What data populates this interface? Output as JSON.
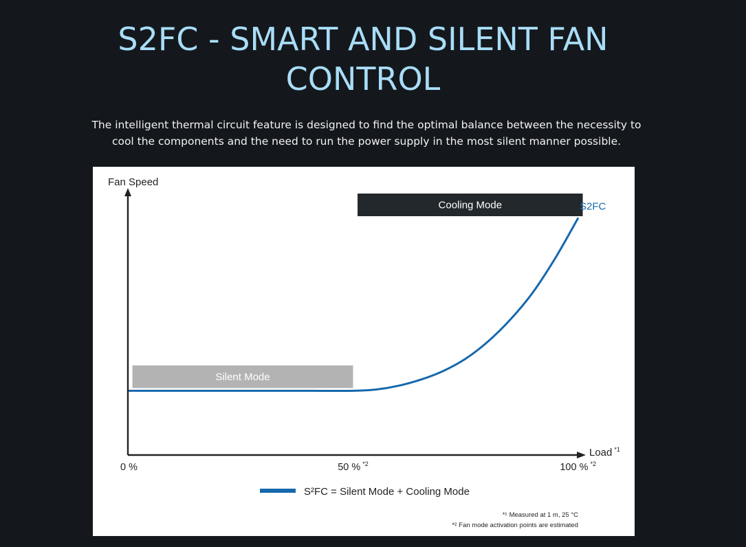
{
  "page": {
    "title": "S2FC - SMART AND SILENT FAN CONTROL",
    "description": "The intelligent thermal circuit feature is designed to find the optimal balance between the necessity to cool the components and the need to run the power supply in the most silent manner possible."
  },
  "colors": {
    "background": "#14181d",
    "title": "#a9ddf7",
    "curve": "#1668ad",
    "silent_band": "#b3b3b3",
    "cooling_band": "#22282c",
    "axis": "#222222"
  },
  "chart_data": {
    "type": "line",
    "ylabel": "Fan Speed",
    "xlabel": "Load",
    "xlabel_sup": "*1",
    "xlim": [
      0,
      100
    ],
    "ylim": [
      0,
      100
    ],
    "x_ticks": [
      {
        "label": "0 %",
        "sup": "",
        "value": 0
      },
      {
        "label": "50 %",
        "sup": "*2",
        "value": 50
      },
      {
        "label": "100 %",
        "sup": "*2",
        "value": 100
      }
    ],
    "series": [
      {
        "name": "S2FC",
        "color": "#1668ad",
        "x": [
          0,
          10,
          20,
          30,
          40,
          50,
          55,
          60,
          65,
          70,
          75,
          80,
          85,
          90,
          95,
          100
        ],
        "y": [
          26,
          26,
          26,
          26,
          26,
          26,
          26.5,
          28,
          30.5,
          34,
          39,
          46,
          55,
          66,
          80,
          96
        ]
      }
    ],
    "bands": [
      {
        "label": "Silent Mode",
        "x_start": 1,
        "x_end": 50
      },
      {
        "label": "Cooling Mode",
        "x_start": 51,
        "x_end": 101
      }
    ],
    "legend": {
      "position": "bottom-center",
      "label": "S²FC = Silent Mode + Cooling Mode"
    },
    "footnotes": [
      {
        "mark": "*¹",
        "text": "Measured at 1 m, 25 °C"
      },
      {
        "mark": "*²",
        "text": "Fan mode activation points are estimated"
      }
    ],
    "grid": false
  }
}
